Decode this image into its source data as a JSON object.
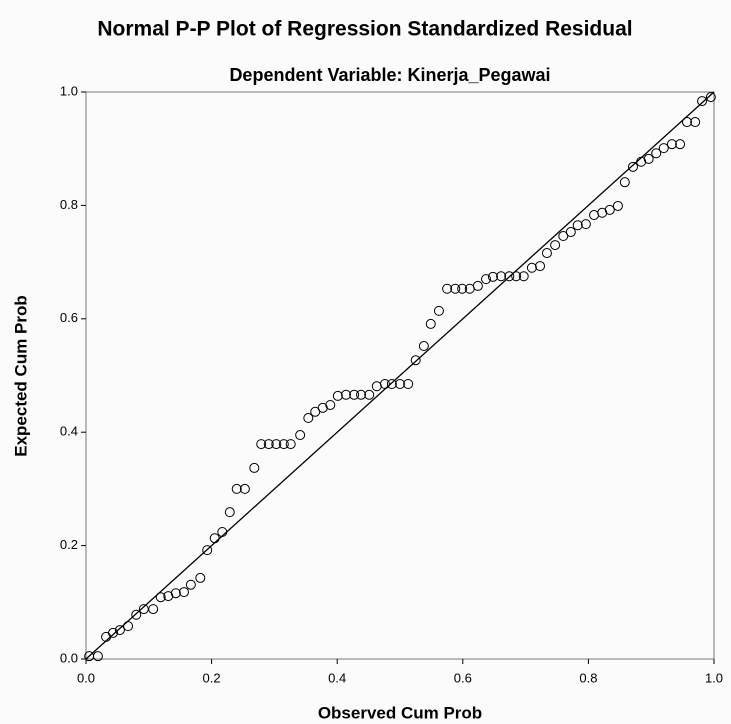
{
  "chart_data": {
    "type": "scatter",
    "title": "Normal P-P Plot of Regression Standardized Residual",
    "subtitle": "Dependent Variable: Kinerja_Pegawai",
    "x_label": "Observed Cum Prob",
    "y_label": "Expected Cum Prob",
    "x": [
      0.005,
      0.019,
      0.032,
      0.043,
      0.054,
      0.067,
      0.08,
      0.092,
      0.107,
      0.119,
      0.131,
      0.143,
      0.156,
      0.167,
      0.182,
      0.193,
      0.205,
      0.217,
      0.229,
      0.24,
      0.253,
      0.268,
      0.279,
      0.291,
      0.303,
      0.315,
      0.326,
      0.341,
      0.354,
      0.365,
      0.377,
      0.389,
      0.401,
      0.414,
      0.427,
      0.438,
      0.451,
      0.463,
      0.476,
      0.487,
      0.5,
      0.513,
      0.525,
      0.538,
      0.549,
      0.562,
      0.575,
      0.588,
      0.599,
      0.611,
      0.624,
      0.637,
      0.648,
      0.661,
      0.674,
      0.685,
      0.697,
      0.71,
      0.723,
      0.734,
      0.747,
      0.76,
      0.772,
      0.783,
      0.796,
      0.809,
      0.822,
      0.834,
      0.847,
      0.858,
      0.871,
      0.884,
      0.896,
      0.908,
      0.92,
      0.933,
      0.946,
      0.957,
      0.97,
      0.981,
      0.995
    ],
    "values": [
      0.005,
      0.005,
      0.039,
      0.046,
      0.051,
      0.058,
      0.078,
      0.088,
      0.088,
      0.109,
      0.111,
      0.116,
      0.118,
      0.131,
      0.143,
      0.192,
      0.213,
      0.224,
      0.259,
      0.3,
      0.3,
      0.337,
      0.379,
      0.379,
      0.379,
      0.379,
      0.379,
      0.395,
      0.425,
      0.436,
      0.443,
      0.448,
      0.464,
      0.466,
      0.466,
      0.466,
      0.466,
      0.481,
      0.485,
      0.485,
      0.485,
      0.485,
      0.527,
      0.552,
      0.591,
      0.614,
      0.653,
      0.653,
      0.653,
      0.653,
      0.658,
      0.67,
      0.674,
      0.675,
      0.675,
      0.675,
      0.675,
      0.69,
      0.693,
      0.716,
      0.73,
      0.746,
      0.753,
      0.765,
      0.767,
      0.783,
      0.787,
      0.792,
      0.799,
      0.841,
      0.868,
      0.877,
      0.882,
      0.892,
      0.901,
      0.908,
      0.908,
      0.947,
      0.947,
      0.984,
      0.991
    ],
    "color": "#000000",
    "reference_line": true,
    "xlim": [
      0,
      1
    ],
    "ylim": [
      0,
      1
    ],
    "xticks": [
      {
        "value": 0,
        "label": "0.0"
      },
      0.2,
      0.4,
      0.6,
      0.8,
      {
        "value": 1,
        "label": "1.0"
      }
    ],
    "yticks": [
      {
        "value": 0,
        "label": "0.0"
      },
      0.2,
      0.4,
      0.6,
      0.8,
      {
        "value": 1,
        "label": "1.0"
      }
    ]
  }
}
